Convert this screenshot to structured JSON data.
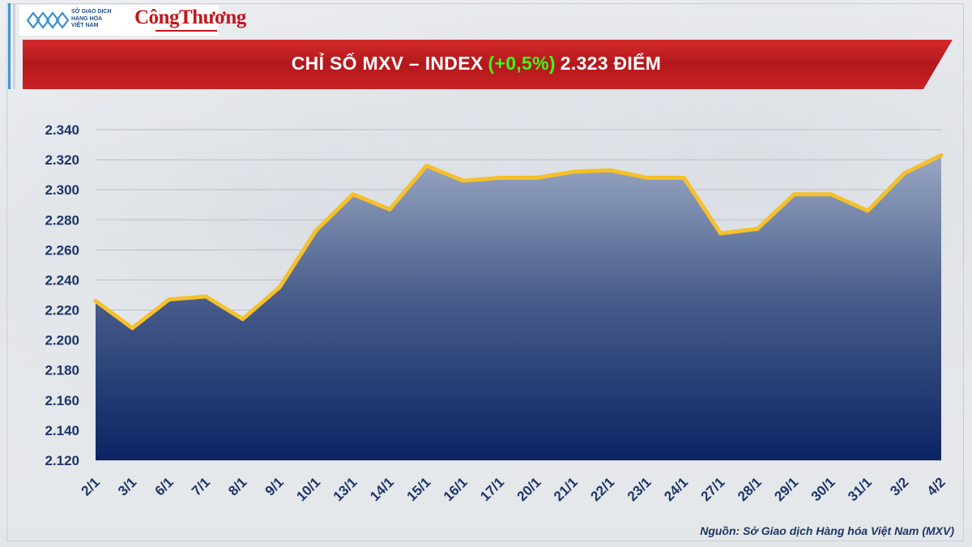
{
  "header": {
    "logo_mxv_lines": [
      "SỞ GIAO DỊCH",
      "HÀNG HÓA",
      "VIỆT NAM"
    ],
    "logo_brand": "CôngThương",
    "title_prefix": "CHỈ SỐ MXV – INDEX",
    "title_change": "(+0,5%)",
    "title_value": "2.323 ĐIỂM"
  },
  "colors": {
    "banner_red": "#c4161c",
    "change_green": "#39ff14",
    "line_yellow": "#f5c02a",
    "area_top": "#9aa8c2",
    "area_bottom": "#0b2463",
    "axis_text": "#1d3568"
  },
  "chart_data": {
    "type": "area",
    "title": "CHỈ SỐ MXV – INDEX (+0,5%) 2.323 ĐIỂM",
    "categories": [
      "2/1",
      "3/1",
      "6/1",
      "7/1",
      "8/1",
      "9/1",
      "10/1",
      "13/1",
      "14/1",
      "15/1",
      "16/1",
      "17/1",
      "20/1",
      "21/1",
      "22/1",
      "23/1",
      "24/1",
      "27/1",
      "28/1",
      "29/1",
      "30/1",
      "31/1",
      "3/2",
      "4/2"
    ],
    "series": [
      {
        "values": [
          2226,
          2208,
          2227,
          2229,
          2214,
          2235,
          2273,
          2297,
          2287,
          2316,
          2306,
          2308,
          2308,
          2312,
          2313,
          2308,
          2308,
          2271,
          2274,
          2297,
          2297,
          2286,
          2311,
          2323
        ]
      }
    ],
    "ylim": [
      2120,
      2340
    ],
    "yticks": [
      "2.120",
      "2.140",
      "2.160",
      "2.180",
      "2.200",
      "2.220",
      "2.240",
      "2.260",
      "2.280",
      "2.300",
      "2.320",
      "2.340"
    ],
    "ytick_values": [
      2120,
      2140,
      2160,
      2180,
      2200,
      2220,
      2240,
      2260,
      2280,
      2300,
      2320,
      2340
    ],
    "grid": true,
    "legend": "none"
  },
  "footer": {
    "source": "Nguồn: Sở Giao dịch Hàng hóa Việt Nam (MXV)"
  }
}
